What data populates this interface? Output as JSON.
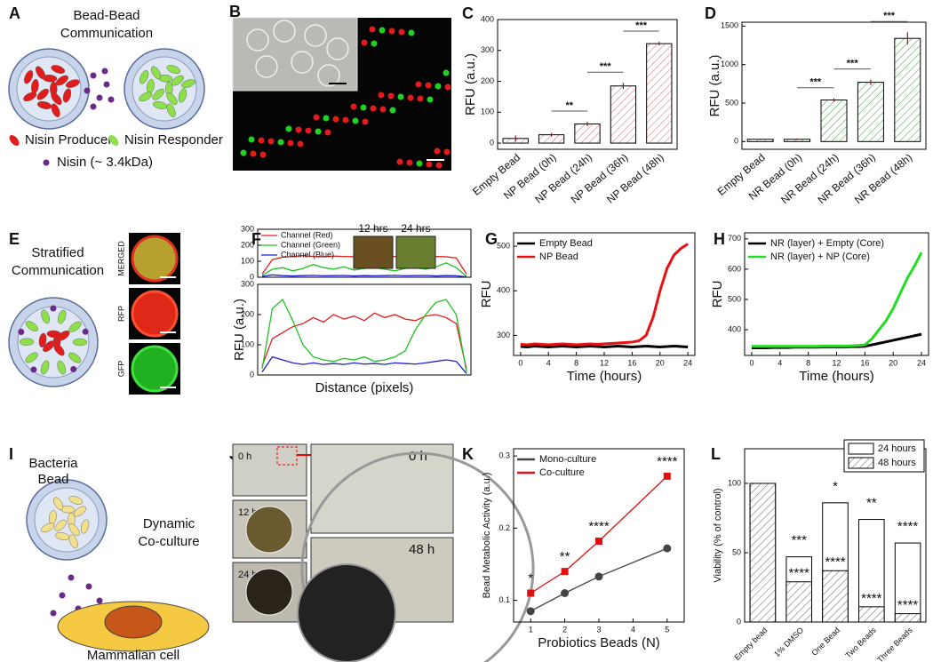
{
  "panel_letters": [
    "A",
    "B",
    "C",
    "D",
    "E",
    "F",
    "G",
    "H",
    "I",
    "J",
    "K",
    "L"
  ],
  "panel_a": {
    "title_lines": [
      "Bead-Bead",
      "Communication"
    ],
    "legend": [
      "Nisin Producer",
      "Nisin Responder",
      "Nisin (~ 3.4kDa)"
    ]
  },
  "panel_e": {
    "title_lines": [
      "Stratified",
      "Communication"
    ],
    "image_labels": [
      "MERGED",
      "RFP",
      "GFP"
    ]
  },
  "panel_i": {
    "labels": [
      "Bacteria",
      "Bead",
      "Dynamic",
      "Co-culture",
      "Mammalian cell"
    ]
  },
  "panel_j": {
    "labels": [
      "0 h",
      "12 h",
      "24 h",
      "0 h",
      "48 h"
    ]
  },
  "chart_data": [
    {
      "type": "bar",
      "ylabel": "RFU (a.u.)",
      "categories": [
        "Empty Bead",
        "NP Bead (0h)",
        "NP Bead (24h)",
        "NP Bead (36h)",
        "NP Bead (48h)"
      ],
      "values": [
        15,
        27,
        62,
        185,
        322
      ],
      "errors": [
        10,
        6,
        7,
        10,
        6
      ],
      "color": "#d9808a",
      "ylim": [
        -20,
        400
      ],
      "yticks": [
        0,
        100,
        200,
        300,
        400
      ],
      "significance": [
        "**",
        "***",
        "***"
      ]
    },
    {
      "type": "bar",
      "ylabel": "RFU (a.u.)",
      "categories": [
        "Empty Bead",
        "NR Bead (0h)",
        "NR Bead (24h)",
        "NR Bead (36h)",
        "NR Bead (48h)"
      ],
      "values": [
        30,
        30,
        540,
        770,
        1340
      ],
      "errors": [
        10,
        10,
        20,
        35,
        80
      ],
      "color": "#5cab5c",
      "ylim": [
        -100,
        1550
      ],
      "yticks": [
        0,
        500,
        1000,
        1500
      ],
      "significance": [
        "***",
        "***",
        "***"
      ]
    },
    {
      "type": "line",
      "ylabel": "RFU (a.u.)",
      "xlabel": "Distance (pixels)",
      "image_labels": [
        "12 hrs",
        "24 hrs"
      ],
      "subplots": [
        {
          "ylim": [
            0,
            300
          ],
          "yticks": [
            0,
            100,
            200,
            300
          ],
          "legend": "upper left",
          "series": [
            {
              "name": "Channel (Red)",
              "color": "#e02020",
              "values": [
                20,
                110,
                125,
                130,
                135,
                130,
                128,
                132,
                130,
                128,
                133,
                130,
                127,
                130,
                132,
                128,
                125,
                130,
                128,
                120,
                20
              ]
            },
            {
              "name": "Channel (Green)",
              "color": "#20c020",
              "values": [
                10,
                50,
                60,
                40,
                55,
                80,
                60,
                50,
                65,
                45,
                55,
                60,
                50,
                40,
                55,
                60,
                50,
                65,
                90,
                60,
                5
              ]
            },
            {
              "name": "Channel (Blue)",
              "color": "#2020d0",
              "values": [
                5,
                15,
                10,
                8,
                10,
                12,
                9,
                10,
                11,
                8,
                10,
                9,
                10,
                12,
                9,
                10,
                11,
                8,
                10,
                9,
                3
              ]
            }
          ]
        },
        {
          "ylim": [
            0,
            300
          ],
          "yticks": [
            0,
            100,
            200,
            300
          ],
          "series": [
            {
              "color": "#e02020",
              "values": [
                30,
                120,
                140,
                160,
                170,
                190,
                175,
                200,
                185,
                195,
                180,
                205,
                190,
                200,
                185,
                180,
                195,
                200,
                190,
                170,
                20
              ]
            },
            {
              "color": "#20c020",
              "values": [
                20,
                220,
                250,
                180,
                100,
                60,
                50,
                45,
                55,
                50,
                60,
                45,
                50,
                60,
                80,
                150,
                200,
                240,
                250,
                200,
                10
              ]
            },
            {
              "color": "#2020d0",
              "values": [
                10,
                60,
                50,
                40,
                35,
                40,
                35,
                38,
                35,
                40,
                36,
                38,
                35,
                40,
                38,
                36,
                40,
                45,
                50,
                45,
                5
              ]
            }
          ]
        }
      ]
    },
    {
      "type": "line",
      "ylabel": "RFU",
      "xlabel": "Time (hours)",
      "legend": "upper left",
      "x": [
        0,
        1,
        2,
        3,
        4,
        5,
        6,
        7,
        8,
        9,
        10,
        11,
        12,
        13,
        14,
        15,
        16,
        17,
        18,
        19,
        20,
        21,
        22,
        23,
        24
      ],
      "xlim": [
        -1,
        25
      ],
      "xticks": [
        0,
        4,
        8,
        12,
        16,
        20,
        24
      ],
      "ylim": [
        255,
        530
      ],
      "yticks": [
        300,
        400,
        500
      ],
      "series": [
        {
          "name": "Empty Bead",
          "color": "#000000",
          "values": [
            275,
            274,
            276,
            275,
            274,
            275,
            276,
            275,
            274,
            275,
            276,
            275,
            274,
            275,
            276,
            275,
            274,
            275,
            276,
            275,
            274,
            275,
            276,
            275,
            274
          ]
        },
        {
          "name": "NP Bead",
          "color": "#e81010",
          "values": [
            280,
            279,
            281,
            280,
            279,
            280,
            281,
            280,
            279,
            280,
            281,
            280,
            281,
            282,
            283,
            284,
            285,
            288,
            300,
            340,
            400,
            450,
            480,
            495,
            505
          ]
        }
      ]
    },
    {
      "type": "line",
      "ylabel": "RFU",
      "xlabel": "Time (hours)",
      "legend": "upper left",
      "x": [
        0,
        1,
        2,
        3,
        4,
        5,
        6,
        7,
        8,
        9,
        10,
        11,
        12,
        13,
        14,
        15,
        16,
        17,
        18,
        19,
        20,
        21,
        22,
        23,
        24
      ],
      "xlim": [
        -1,
        25
      ],
      "xticks": [
        0,
        4,
        8,
        12,
        16,
        20,
        24
      ],
      "ylim": [
        315,
        720
      ],
      "yticks": [
        400,
        500,
        600,
        700
      ],
      "series": [
        {
          "name": "NR (layer) + Empty (Core)",
          "color": "#000000",
          "values": [
            340,
            340,
            340,
            341,
            341,
            341,
            342,
            342,
            342,
            342,
            343,
            343,
            343,
            343,
            344,
            344,
            345,
            350,
            355,
            360,
            365,
            370,
            375,
            380,
            385
          ]
        },
        {
          "name": "NR (layer) + NP (Core)",
          "color": "#22dd22",
          "values": [
            345,
            345,
            345,
            345,
            345,
            345,
            345,
            345,
            345,
            345,
            346,
            346,
            346,
            346,
            347,
            348,
            350,
            370,
            400,
            430,
            470,
            520,
            570,
            610,
            655
          ]
        }
      ]
    },
    {
      "type": "line",
      "ylabel": "Bead Metabolic Activity (a.u.)",
      "xlabel": "Probiotics Beads (N)",
      "legend": "upper left",
      "x": [
        1,
        2,
        3,
        5
      ],
      "xlim": [
        0.5,
        5.5
      ],
      "xticks": [
        1,
        2,
        3,
        4,
        5
      ],
      "ylim": [
        0.07,
        0.31
      ],
      "yticks": [
        0.1,
        0.2,
        0.3
      ],
      "annotations": [
        "*",
        "**",
        "****",
        "****"
      ],
      "series": [
        {
          "name": "Mono-culture",
          "color": "#444444",
          "marker": "circle",
          "values": [
            0.085,
            0.11,
            0.133,
            0.172
          ]
        },
        {
          "name": "Co-culture",
          "color": "#e01010",
          "marker": "square",
          "values": [
            0.11,
            0.14,
            0.182,
            0.272
          ]
        }
      ]
    },
    {
      "type": "bar",
      "ylabel": "Viability (% of control)",
      "legend": "upper right",
      "categories": [
        "Empty bead",
        "1% DMSO",
        "One Bead",
        "Two Beads",
        "Three Beads"
      ],
      "ylim": [
        0,
        125
      ],
      "yticks": [
        0,
        50,
        100
      ],
      "significance_24h": [
        "***",
        "*",
        "**",
        "****"
      ],
      "significance_48h": [
        "****",
        "****",
        "****",
        "****"
      ],
      "series": [
        {
          "name": "24 hours",
          "color": "#ffffff",
          "values": [
            100,
            47,
            86,
            74,
            57
          ]
        },
        {
          "name": "48 hours",
          "color": "#777777",
          "values": [
            100,
            29,
            37,
            11,
            6
          ]
        }
      ]
    }
  ]
}
